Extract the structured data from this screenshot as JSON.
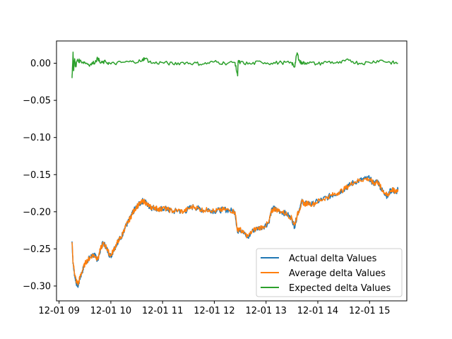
{
  "chart_data": {
    "type": "line",
    "title": "",
    "xlabel": "",
    "ylabel": "",
    "x_ticks": [
      "12-01 09",
      "12-01 10",
      "12-01 11",
      "12-01 12",
      "12-01 13",
      "12-01 14",
      "12-01 15"
    ],
    "x_range_hours": [
      8.95,
      15.72
    ],
    "y_ticks": [
      "0.00",
      "−0.05",
      "−0.10",
      "−0.15",
      "−0.20",
      "−0.25",
      "−0.30"
    ],
    "ylim": [
      -0.32,
      0.03
    ],
    "grid": false,
    "legend_position": "lower-right",
    "series": [
      {
        "name": "Actual delta Values",
        "color": "#1f77b4",
        "x": [
          9.25,
          9.27,
          9.3,
          9.33,
          9.37,
          9.4,
          9.45,
          9.5,
          9.55,
          9.6,
          9.65,
          9.7,
          9.75,
          9.8,
          9.85,
          9.9,
          9.95,
          10.0,
          10.05,
          10.1,
          10.15,
          10.2,
          10.25,
          10.3,
          10.35,
          10.4,
          10.45,
          10.5,
          10.55,
          10.6,
          10.65,
          10.7,
          10.75,
          10.8,
          10.85,
          10.9,
          10.95,
          11.0,
          11.1,
          11.2,
          11.3,
          11.4,
          11.5,
          11.6,
          11.7,
          11.8,
          11.9,
          12.0,
          12.1,
          12.2,
          12.3,
          12.4,
          12.45,
          12.48,
          12.55,
          12.65,
          12.75,
          12.85,
          12.95,
          13.05,
          13.1,
          13.15,
          13.2,
          13.3,
          13.4,
          13.5,
          13.55,
          13.6,
          13.65,
          13.7,
          13.75,
          13.8,
          13.9,
          14.0,
          14.1,
          14.2,
          14.3,
          14.4,
          14.5,
          14.6,
          14.7,
          14.8,
          14.9,
          15.0,
          15.05,
          15.1,
          15.15,
          15.2,
          15.25,
          15.3,
          15.35,
          15.4,
          15.45,
          15.5,
          15.55
        ],
        "values": [
          -0.24,
          -0.27,
          -0.285,
          -0.295,
          -0.3,
          -0.29,
          -0.28,
          -0.27,
          -0.265,
          -0.262,
          -0.258,
          -0.26,
          -0.265,
          -0.25,
          -0.242,
          -0.246,
          -0.255,
          -0.26,
          -0.252,
          -0.245,
          -0.238,
          -0.235,
          -0.225,
          -0.218,
          -0.212,
          -0.205,
          -0.198,
          -0.193,
          -0.19,
          -0.186,
          -0.185,
          -0.19,
          -0.193,
          -0.195,
          -0.194,
          -0.196,
          -0.198,
          -0.195,
          -0.197,
          -0.2,
          -0.198,
          -0.201,
          -0.196,
          -0.193,
          -0.196,
          -0.198,
          -0.197,
          -0.199,
          -0.198,
          -0.197,
          -0.198,
          -0.2,
          -0.228,
          -0.222,
          -0.228,
          -0.235,
          -0.225,
          -0.222,
          -0.22,
          -0.215,
          -0.2,
          -0.195,
          -0.197,
          -0.2,
          -0.203,
          -0.21,
          -0.22,
          -0.205,
          -0.195,
          -0.185,
          -0.19,
          -0.188,
          -0.19,
          -0.186,
          -0.183,
          -0.18,
          -0.177,
          -0.174,
          -0.17,
          -0.165,
          -0.16,
          -0.158,
          -0.156,
          -0.155,
          -0.16,
          -0.162,
          -0.158,
          -0.165,
          -0.172,
          -0.175,
          -0.18,
          -0.172,
          -0.17,
          -0.175,
          -0.17
        ]
      },
      {
        "name": "Average delta Values",
        "color": "#ff7f0e",
        "x": [
          9.25,
          9.27,
          9.3,
          9.33,
          9.37,
          9.4,
          9.45,
          9.5,
          9.55,
          9.6,
          9.65,
          9.7,
          9.75,
          9.8,
          9.85,
          9.9,
          9.95,
          10.0,
          10.05,
          10.1,
          10.15,
          10.2,
          10.25,
          10.3,
          10.35,
          10.4,
          10.45,
          10.5,
          10.55,
          10.6,
          10.65,
          10.7,
          10.75,
          10.8,
          10.85,
          10.9,
          10.95,
          11.0,
          11.1,
          11.2,
          11.3,
          11.4,
          11.5,
          11.6,
          11.7,
          11.8,
          11.9,
          12.0,
          12.1,
          12.2,
          12.3,
          12.4,
          12.45,
          12.48,
          12.55,
          12.65,
          12.75,
          12.85,
          12.95,
          13.05,
          13.1,
          13.15,
          13.2,
          13.3,
          13.4,
          13.5,
          13.55,
          13.6,
          13.65,
          13.7,
          13.75,
          13.8,
          13.9,
          14.0,
          14.1,
          14.2,
          14.3,
          14.4,
          14.5,
          14.6,
          14.7,
          14.8,
          14.9,
          15.0,
          15.05,
          15.1,
          15.15,
          15.2,
          15.25,
          15.3,
          15.35,
          15.4,
          15.45,
          15.5,
          15.55
        ],
        "values": [
          -0.241,
          -0.268,
          -0.283,
          -0.293,
          -0.297,
          -0.289,
          -0.279,
          -0.27,
          -0.265,
          -0.262,
          -0.258,
          -0.26,
          -0.264,
          -0.25,
          -0.243,
          -0.246,
          -0.254,
          -0.259,
          -0.252,
          -0.245,
          -0.238,
          -0.235,
          -0.225,
          -0.218,
          -0.212,
          -0.205,
          -0.198,
          -0.193,
          -0.19,
          -0.187,
          -0.186,
          -0.19,
          -0.193,
          -0.195,
          -0.194,
          -0.196,
          -0.197,
          -0.195,
          -0.197,
          -0.199,
          -0.198,
          -0.2,
          -0.196,
          -0.193,
          -0.196,
          -0.198,
          -0.197,
          -0.199,
          -0.198,
          -0.197,
          -0.198,
          -0.2,
          -0.226,
          -0.222,
          -0.228,
          -0.233,
          -0.225,
          -0.222,
          -0.22,
          -0.215,
          -0.201,
          -0.196,
          -0.197,
          -0.2,
          -0.203,
          -0.209,
          -0.218,
          -0.205,
          -0.196,
          -0.186,
          -0.19,
          -0.188,
          -0.19,
          -0.186,
          -0.183,
          -0.18,
          -0.177,
          -0.174,
          -0.17,
          -0.165,
          -0.16,
          -0.158,
          -0.156,
          -0.156,
          -0.16,
          -0.162,
          -0.159,
          -0.165,
          -0.171,
          -0.175,
          -0.179,
          -0.172,
          -0.17,
          -0.174,
          -0.17
        ]
      },
      {
        "name": "Expected delta Values",
        "color": "#2ca02c",
        "x": [
          9.25,
          9.27,
          9.28,
          9.3,
          9.32,
          9.35,
          9.4,
          9.5,
          9.6,
          9.7,
          9.75,
          9.8,
          9.9,
          10.0,
          10.2,
          10.4,
          10.6,
          10.65,
          10.8,
          11.0,
          11.2,
          11.4,
          11.6,
          11.8,
          12.0,
          12.2,
          12.4,
          12.45,
          12.46,
          12.5,
          12.7,
          12.9,
          13.1,
          13.3,
          13.5,
          13.55,
          13.6,
          13.65,
          13.7,
          13.8,
          14.0,
          14.2,
          14.4,
          14.6,
          14.8,
          15.0,
          15.2,
          15.4,
          15.55
        ],
        "values": [
          -0.02,
          0.015,
          -0.01,
          0.006,
          -0.005,
          0.004,
          0.003,
          0.001,
          -0.002,
          0.002,
          0.007,
          0.0,
          0.002,
          -0.001,
          0.001,
          0.002,
          0.003,
          0.007,
          0.0,
          0.001,
          -0.001,
          0.001,
          0.0,
          -0.001,
          0.002,
          0.0,
          0.001,
          -0.017,
          0.002,
          0.001,
          -0.001,
          0.002,
          0.0,
          0.001,
          0.0,
          -0.005,
          0.014,
          0.002,
          0.0,
          0.001,
          -0.001,
          0.002,
          0.0,
          0.004,
          0.0,
          0.001,
          0.004,
          0.001,
          0.0
        ]
      }
    ]
  }
}
